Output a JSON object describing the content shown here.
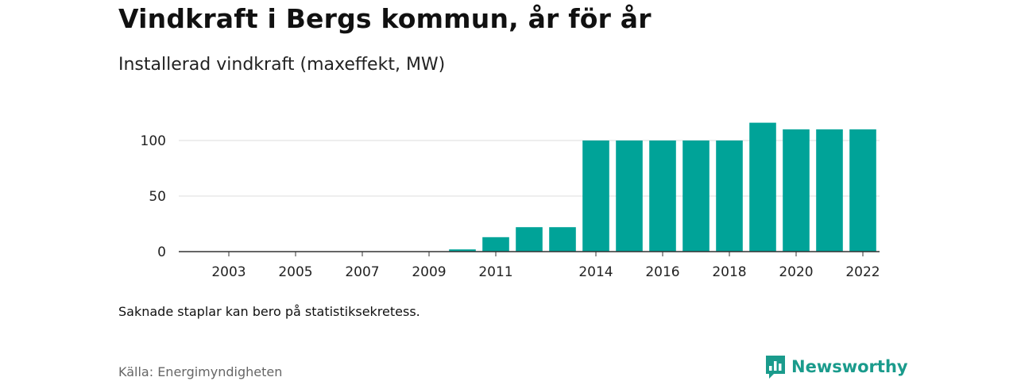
{
  "title": "Vindkraft i Bergs kommun, år för år",
  "subtitle": "Installerad vindkraft (maxeffekt, MW)",
  "note": "Saknade staplar kan bero på statistiksekretess.",
  "source": "Källa: Energimyndigheten",
  "brand": {
    "name": "Newsworthy",
    "icon": "newsworthy-logo-icon",
    "color": "#1a9b8c"
  },
  "chart_data": {
    "type": "bar",
    "title": "Vindkraft i Bergs kommun, år för år",
    "subtitle": "Installerad vindkraft (maxeffekt, MW)",
    "xlabel": "",
    "ylabel": "",
    "bar_color": "#00a398",
    "categories": [
      "2002",
      "2003",
      "2004",
      "2005",
      "2006",
      "2007",
      "2008",
      "2009",
      "2010",
      "2011",
      "2012",
      "2013",
      "2014",
      "2015",
      "2016",
      "2017",
      "2018",
      "2019",
      "2020",
      "2021",
      "2022"
    ],
    "values": [
      null,
      null,
      null,
      null,
      null,
      null,
      null,
      null,
      2,
      13,
      22,
      22,
      100,
      100,
      100,
      100,
      100,
      116,
      110,
      110,
      110
    ],
    "x_tick_labels": [
      "2003",
      "2005",
      "2007",
      "2009",
      "2011",
      "2014",
      "2016",
      "2018",
      "2020",
      "2022"
    ],
    "y_ticks": [
      0,
      50,
      100
    ],
    "ylim": [
      0,
      120
    ],
    "grid": true
  }
}
